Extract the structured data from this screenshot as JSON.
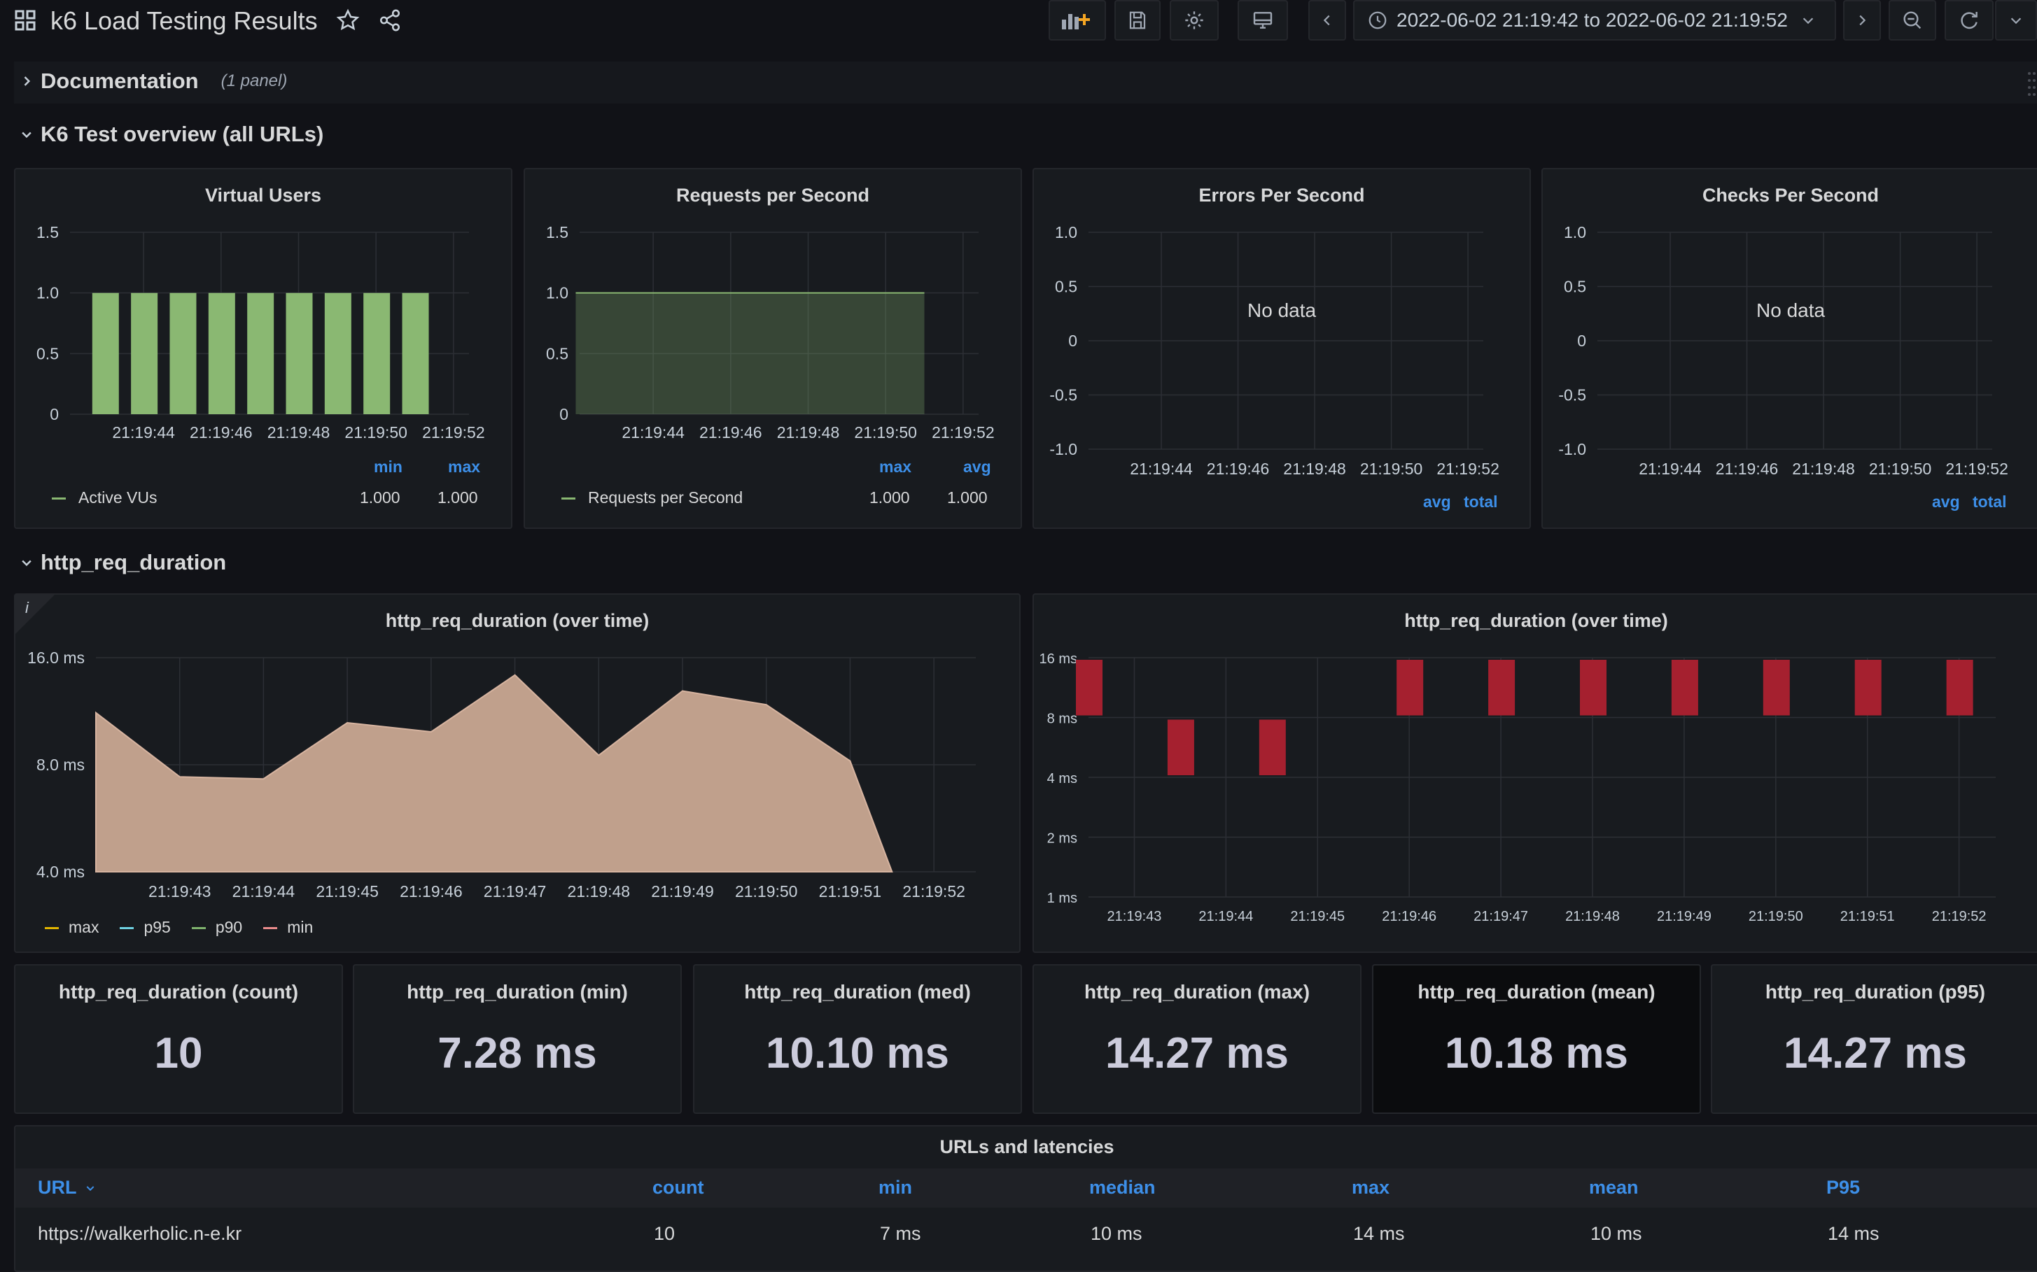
{
  "header": {
    "title": "k6 Load Testing Results",
    "time_range": "2022-06-02 21:19:42 to 2022-06-02 21:19:52"
  },
  "rows": {
    "documentation": {
      "title": "Documentation",
      "note": "(1 panel)"
    },
    "overview": {
      "title": "K6 Test overview (all URLs)"
    },
    "duration": {
      "title": "http_req_duration"
    }
  },
  "panels": {
    "virtual_users": {
      "title": "Virtual Users",
      "legend_name": "Active VUs",
      "col1": "min",
      "col2": "max",
      "val1": "1.000",
      "val2": "1.000"
    },
    "requests": {
      "title": "Requests per Second",
      "legend_name": "Requests per Second",
      "col1": "max",
      "col2": "avg",
      "val1": "1.000",
      "val2": "1.000"
    },
    "errors": {
      "title": "Errors Per Second",
      "no_data": "No data",
      "col1": "avg",
      "col2": "total"
    },
    "checks": {
      "title": "Checks Per Second",
      "no_data": "No data",
      "col1": "avg",
      "col2": "total"
    },
    "duration_area": {
      "title": "http_req_duration (over time)",
      "legend": [
        "max",
        "p95",
        "p90",
        "min"
      ]
    },
    "duration_heat": {
      "title": "http_req_duration (over time)"
    }
  },
  "stats": [
    {
      "title": "http_req_duration (count)",
      "value": "10"
    },
    {
      "title": "http_req_duration (min)",
      "value": "7.28 ms"
    },
    {
      "title": "http_req_duration (med)",
      "value": "10.10 ms"
    },
    {
      "title": "http_req_duration (max)",
      "value": "14.27 ms"
    },
    {
      "title": "http_req_duration (mean)",
      "value": "10.18 ms"
    },
    {
      "title": "http_req_duration (p95)",
      "value": "14.27 ms"
    }
  ],
  "table": {
    "title": "URLs and latencies",
    "headers": [
      "URL",
      "count",
      "min",
      "median",
      "max",
      "mean",
      "P95"
    ],
    "rows": [
      [
        "https://walkerholic.n-e.kr",
        "10",
        "7 ms",
        "10 ms",
        "14 ms",
        "10 ms",
        "14 ms"
      ]
    ]
  },
  "colors": {
    "green": "#8ab872",
    "salmon": "#c0a08c",
    "red": "#a5202f",
    "accent": "#3d8fe8"
  },
  "chart_data": [
    {
      "type": "bar",
      "title": "Virtual Users",
      "categories": [
        "21:19:43",
        "21:19:44",
        "21:19:45",
        "21:19:46",
        "21:19:47",
        "21:19:48",
        "21:19:49",
        "21:19:50",
        "21:19:51"
      ],
      "values": [
        1,
        1,
        1,
        1,
        1,
        1,
        1,
        1,
        1
      ],
      "x_ticks": [
        "21:19:44",
        "21:19:46",
        "21:19:48",
        "21:19:50",
        "21:19:52"
      ],
      "y_ticks": [
        "0",
        "0.5",
        "1.0",
        "1.5"
      ],
      "ylim": [
        0,
        1.5
      ],
      "series": [
        {
          "name": "Active VUs",
          "values": [
            1,
            1,
            1,
            1,
            1,
            1,
            1,
            1,
            1
          ]
        }
      ]
    },
    {
      "type": "area",
      "title": "Requests per Second",
      "x": [
        "21:19:42",
        "21:19:51"
      ],
      "values": [
        1,
        1
      ],
      "x_ticks": [
        "21:19:44",
        "21:19:46",
        "21:19:48",
        "21:19:50",
        "21:19:52"
      ],
      "y_ticks": [
        "0",
        "0.5",
        "1.0",
        "1.5"
      ],
      "ylim": [
        0,
        1.5
      ],
      "series": [
        {
          "name": "Requests per Second",
          "values": [
            1,
            1
          ]
        }
      ]
    },
    {
      "type": "line",
      "title": "Errors Per Second",
      "x_ticks": [
        "21:19:44",
        "21:19:46",
        "21:19:48",
        "21:19:50",
        "21:19:52"
      ],
      "y_ticks": [
        "-1.0",
        "-0.5",
        "0",
        "0.5",
        "1.0"
      ],
      "ylim": [
        -1,
        1
      ],
      "series": []
    },
    {
      "type": "line",
      "title": "Checks Per Second",
      "x_ticks": [
        "21:19:44",
        "21:19:46",
        "21:19:48",
        "21:19:50",
        "21:19:52"
      ],
      "y_ticks": [
        "-1.0",
        "-0.5",
        "0",
        "0.5",
        "1.0"
      ],
      "ylim": [
        -1,
        1
      ],
      "series": []
    },
    {
      "type": "area",
      "title": "http_req_duration (over time)",
      "x": [
        "21:19:42",
        "21:19:43",
        "21:19:44",
        "21:19:45",
        "21:19:46",
        "21:19:47",
        "21:19:48",
        "21:19:49",
        "21:19:50",
        "21:19:51",
        "21:19:51.5"
      ],
      "values": [
        11.2,
        7.4,
        7.3,
        10.5,
        9.9,
        14.3,
        8.5,
        12.9,
        11.8,
        8.2,
        4.0
      ],
      "x_ticks": [
        "21:19:43",
        "21:19:44",
        "21:19:45",
        "21:19:46",
        "21:19:47",
        "21:19:48",
        "21:19:49",
        "21:19:50",
        "21:19:51",
        "21:19:52"
      ],
      "y_ticks": [
        "4.0 ms",
        "8.0 ms",
        "16.0 ms"
      ],
      "ylim": [
        4,
        16
      ],
      "yscale": "log2",
      "series": [
        {
          "name": "max"
        },
        {
          "name": "p95"
        },
        {
          "name": "p90"
        },
        {
          "name": "min"
        }
      ]
    },
    {
      "type": "heatmap",
      "title": "http_req_duration (over time)",
      "x_ticks": [
        "21:19:43",
        "21:19:44",
        "21:19:45",
        "21:19:46",
        "21:19:47",
        "21:19:48",
        "21:19:49",
        "21:19:50",
        "21:19:51",
        "21:19:52"
      ],
      "y_ticks": [
        "1 ms",
        "2 ms",
        "4 ms",
        "8 ms",
        "16 ms"
      ],
      "yscale": "log2",
      "cells": [
        {
          "x": "21:19:42.5",
          "bucket": "8-16 ms"
        },
        {
          "x": "21:19:43.5",
          "bucket": "4-8 ms"
        },
        {
          "x": "21:19:44.5",
          "bucket": "4-8 ms"
        },
        {
          "x": "21:19:46",
          "bucket": "8-16 ms"
        },
        {
          "x": "21:19:47",
          "bucket": "8-16 ms"
        },
        {
          "x": "21:19:48",
          "bucket": "8-16 ms"
        },
        {
          "x": "21:19:49",
          "bucket": "8-16 ms"
        },
        {
          "x": "21:19:50",
          "bucket": "8-16 ms"
        },
        {
          "x": "21:19:51",
          "bucket": "8-16 ms"
        },
        {
          "x": "21:19:52",
          "bucket": "8-16 ms"
        }
      ]
    }
  ]
}
